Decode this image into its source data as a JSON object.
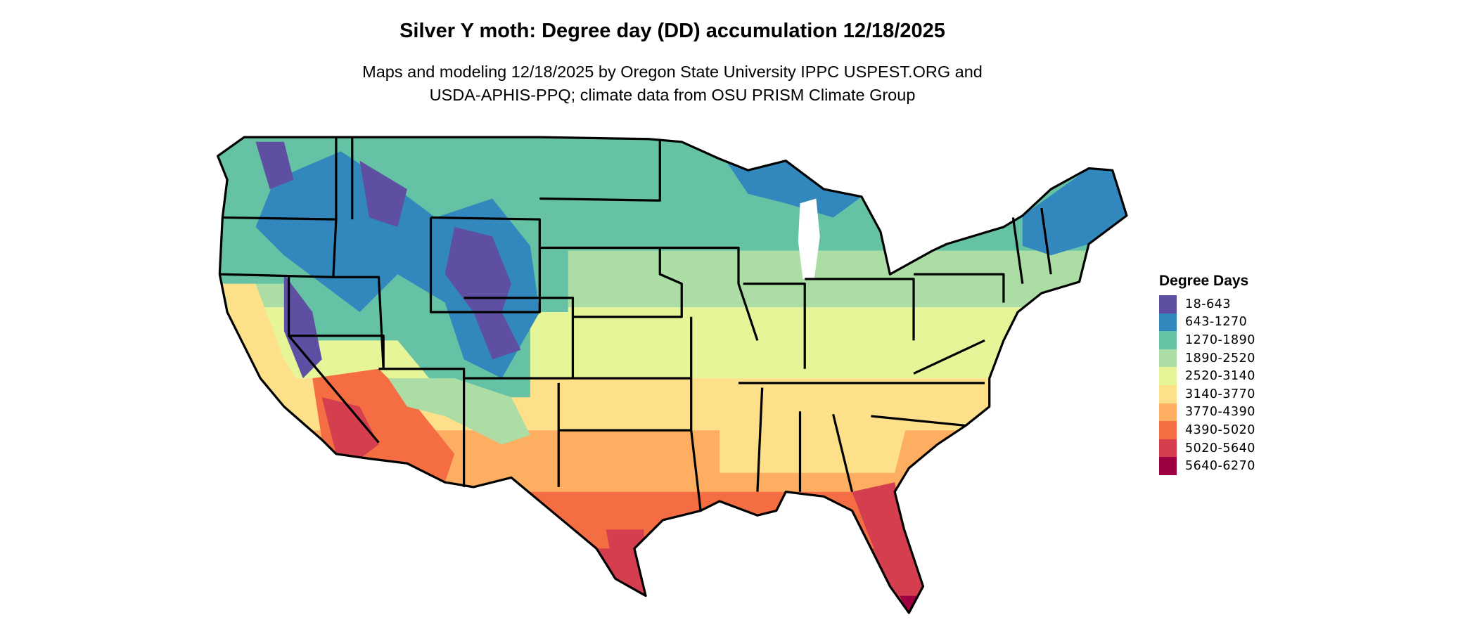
{
  "title": "Silver Y moth: Degree day (DD) accumulation 12/18/2025",
  "subtitle": {
    "line1": "Maps and modeling 12/18/2025 by Oregon State University IPPC USPEST.ORG and",
    "line2": "USDA-APHIS-PPQ; climate data from OSU PRISM Climate Group"
  },
  "legend": {
    "title": "Degree Days",
    "items": [
      {
        "label": "18-643",
        "color": "#5e4fa2"
      },
      {
        "label": "643-1270",
        "color": "#3288bd"
      },
      {
        "label": "1270-1890",
        "color": "#66c2a5"
      },
      {
        "label": "1890-2520",
        "color": "#abdda4"
      },
      {
        "label": "2520-3140",
        "color": "#e6f598"
      },
      {
        "label": "3140-3770",
        "color": "#fee08b"
      },
      {
        "label": "3770-4390",
        "color": "#fdae61"
      },
      {
        "label": "4390-5020",
        "color": "#f46d43"
      },
      {
        "label": "5020-5640",
        "color": "#d53e4f"
      },
      {
        "label": "5640-6270",
        "color": "#9e0142"
      }
    ]
  },
  "map": {
    "region": "Contiguous United States",
    "border_color": "#000000"
  }
}
